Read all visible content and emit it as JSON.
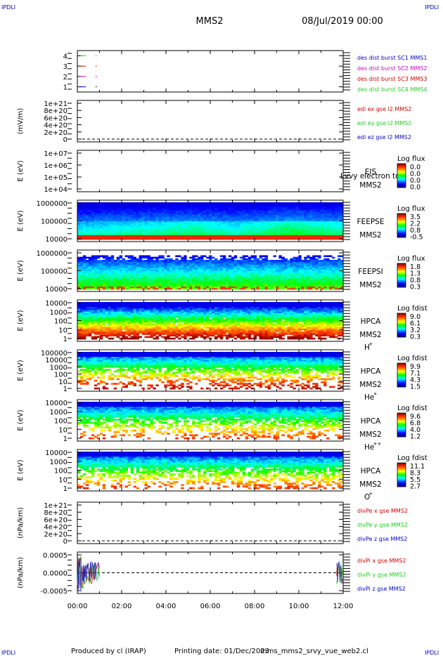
{
  "header": {
    "corner_label": "IPDLI",
    "mission": "MMS2",
    "date": "08/Jul/2019 00:00"
  },
  "footer": {
    "credit": "Produced by cl (IRAP)",
    "printing": "Printing date: 01/Dec/2023",
    "script": "mms_mms2_srvy_vue_web2.cl"
  },
  "time_axis": {
    "ticks": [
      "00:00",
      "02:00",
      "04:00",
      "06:00",
      "08:00",
      "10:00",
      "12:00"
    ],
    "range_hours": [
      0,
      12
    ]
  },
  "colors": {
    "black": "#000000",
    "red": "#d40000",
    "green": "#22cc22",
    "blue": "#0000cc",
    "magenta": "#cc00cc"
  },
  "chart_data": [
    {
      "type": "scatter",
      "panel": "burst",
      "yticks": [
        "1",
        "2",
        "3",
        "4"
      ],
      "ylim": [
        0.5,
        4.5
      ],
      "legend": [
        {
          "text": "des dist burst SC1 MMS1",
          "color": "#0000cc"
        },
        {
          "text": "des dist burst SC2 MMS2",
          "color": "#cc00cc"
        },
        {
          "text": "des dist burst SC3 MMS3",
          "color": "#d40000"
        },
        {
          "text": "des dist burst SC4 MMS4",
          "color": "#22cc22"
        }
      ],
      "series": [
        {
          "level": 4,
          "x_hours": [
            0.1,
            0.5
          ],
          "color": "#22cc22"
        },
        {
          "level": 3,
          "x_hours": [
            0.1,
            0.5
          ],
          "color": "#d40000"
        },
        {
          "level": 2,
          "x_hours": [
            0.1,
            0.5
          ],
          "color": "#cc00cc"
        },
        {
          "level": 1,
          "x_hours": [
            0.1,
            0.5
          ],
          "color": "#0000cc"
        }
      ]
    },
    {
      "type": "line",
      "panel": "edi",
      "ylabel": "(mV/m)",
      "yticks": [
        "0",
        "2e+20",
        "4e+20",
        "6e+20",
        "8e+20",
        "1e+21"
      ],
      "ylim": [
        0,
        1e+21
      ],
      "legend": [
        {
          "text": "edi ex gse l2 MMS2",
          "color": "#d40000"
        },
        {
          "text": "edi ey gse l2 MMS2",
          "color": "#22cc22"
        },
        {
          "text": "edi ez gse l2 MMS2",
          "color": "#0000cc"
        }
      ]
    },
    {
      "type": "heatmap",
      "panel": "eis",
      "ylabel": "E (eV)",
      "yticks": [
        "1e+04",
        "1e+05",
        "1e+06",
        "1e+07"
      ],
      "log_y": true,
      "labels": [
        "EIS",
        "MMS2"
      ],
      "overlay_text": "Lvvy electron to",
      "colorbar": {
        "title": "Log flux",
        "ticks": [
          "0.0",
          "0.0",
          "0.0",
          "0.0"
        ]
      },
      "filled": false
    },
    {
      "type": "heatmap",
      "panel": "feeps_e",
      "ylabel": "E (eV)",
      "yticks": [
        "10000",
        "100000",
        "1000000"
      ],
      "log_y": true,
      "labels": [
        "FEEPSE",
        "MMS2"
      ],
      "colorbar": {
        "title": "Log flux",
        "ticks": [
          "3.5",
          "2.2",
          "0.8",
          "-0.5"
        ]
      },
      "profile": [
        [
          0,
          0.25
        ],
        [
          0.45,
          0.7
        ],
        [
          0.6,
          0.4
        ],
        [
          0.8,
          0.95
        ],
        [
          1,
          0.6
        ]
      ],
      "intensity_range": [
        0.15,
        0.95
      ]
    },
    {
      "type": "heatmap",
      "panel": "feeps_i",
      "ylabel": "E (eV)",
      "yticks": [
        "10000",
        "100000",
        "1000000"
      ],
      "log_y": true,
      "labels": [
        "FEEPSI",
        "MMS2"
      ],
      "colorbar": {
        "title": "Log flux",
        "ticks": [
          "1.8",
          "1.3",
          "0.8",
          "0.3"
        ]
      },
      "profile": [
        [
          0,
          0.35
        ],
        [
          0.3,
          0.5
        ],
        [
          0.5,
          0.45
        ],
        [
          0.55,
          0.8
        ],
        [
          0.7,
          0.5
        ]
      ],
      "intensity_range": [
        0.15,
        0.55
      ]
    },
    {
      "type": "heatmap",
      "panel": "hpca_h",
      "ylabel": "E (eV)",
      "yticks": [
        "1",
        "10",
        "100",
        "1000",
        "10000"
      ],
      "log_y": true,
      "labels": [
        "HPCA",
        "MMS2",
        "H",
        "+"
      ],
      "colorbar": {
        "title": "Log fdist",
        "ticks": [
          "9.0",
          "6.1",
          "3.2",
          "0.3"
        ]
      },
      "profile": [
        [
          0,
          0.9
        ],
        [
          0.2,
          0.75
        ],
        [
          0.4,
          0.55
        ],
        [
          0.65,
          0.4
        ],
        [
          0.85,
          0.35
        ],
        [
          1,
          0.1
        ]
      ],
      "intensity_range": [
        0.05,
        1.0
      ]
    },
    {
      "type": "heatmap",
      "panel": "hpca_he",
      "ylabel": "E (eV)",
      "yticks": [
        "1",
        "10",
        "100",
        "1000",
        "10000",
        "100000"
      ],
      "log_y": true,
      "labels": [
        "HPCA",
        "MMS2",
        "He",
        "+"
      ],
      "colorbar": {
        "title": "Log fdist",
        "ticks": [
          "9.9",
          "7.1",
          "4.3",
          "1.5"
        ]
      },
      "profile": [
        [
          0,
          0.15
        ],
        [
          0.2,
          0.45
        ],
        [
          0.4,
          0.7
        ],
        [
          0.55,
          0.8
        ],
        [
          0.7,
          0.95
        ],
        [
          1,
          0.6
        ]
      ],
      "intensity_range": [
        0.15,
        0.95
      ]
    },
    {
      "type": "heatmap",
      "panel": "hpca_hepp",
      "ylabel": "E (eV)",
      "yticks": [
        "1",
        "10",
        "100",
        "1000",
        "10000"
      ],
      "log_y": true,
      "labels": [
        "HPCA",
        "MMS2",
        "He",
        "++"
      ],
      "colorbar": {
        "title": "Log fdist",
        "ticks": [
          "9.6",
          "6.8",
          "4.0",
          "1.2"
        ]
      },
      "profile": [
        [
          0,
          0.2
        ],
        [
          0.3,
          0.5
        ],
        [
          0.55,
          0.6
        ],
        [
          0.7,
          0.9
        ],
        [
          1,
          0.9
        ]
      ],
      "intensity_range": [
        0.15,
        0.85
      ]
    },
    {
      "type": "heatmap",
      "panel": "hpca_o",
      "ylabel": "E (eV)",
      "yticks": [
        "1",
        "10",
        "100",
        "1000",
        "10000"
      ],
      "log_y": true,
      "labels": [
        "HPCA",
        "MMS2",
        "O",
        "+"
      ],
      "colorbar": {
        "title": "Log fdist",
        "ticks": [
          "11.1",
          "8.3",
          "5.5",
          "2.7"
        ]
      },
      "profile": [
        [
          0,
          0.3
        ],
        [
          0.4,
          0.55
        ],
        [
          0.6,
          0.65
        ],
        [
          0.8,
          0.85
        ],
        [
          1,
          0.9
        ]
      ],
      "intensity_range": [
        0.15,
        0.85
      ]
    },
    {
      "type": "line",
      "panel": "divpe",
      "ylabel": "(nPa/km)",
      "yticks": [
        "0",
        "2e+20",
        "4e+20",
        "6e+20",
        "8e+20",
        "1e+21"
      ],
      "ylim": [
        0,
        1e+21
      ],
      "legend": [
        {
          "text": "divPe x gse MMS2",
          "color": "#d40000"
        },
        {
          "text": "divPe y gse MMS2",
          "color": "#22cc22"
        },
        {
          "text": "divPe z gse MMS2",
          "color": "#0000cc"
        }
      ]
    },
    {
      "type": "line",
      "panel": "divpi",
      "ylabel": "(nPa/km)",
      "yticks": [
        "-0.0005",
        "0.0000",
        "0.0005"
      ],
      "ylim": [
        -0.00075,
        0.00075
      ],
      "legend": [
        {
          "text": "divPi x gse MMS2",
          "color": "#d40000"
        },
        {
          "text": "divPi y gse MMS2",
          "color": "#22cc22"
        },
        {
          "text": "divPi z gse MMS2",
          "color": "#0000cc"
        }
      ],
      "data_intervals_hours": [
        [
          0.0,
          1.0
        ],
        [
          11.7,
          12.0
        ]
      ],
      "amplitude": 0.0004
    }
  ]
}
